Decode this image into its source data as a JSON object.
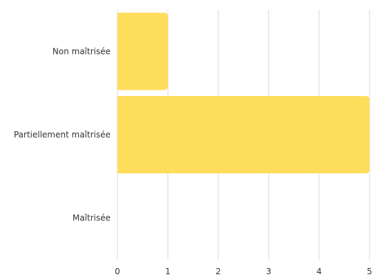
{
  "chart_data": {
    "type": "bar",
    "orientation": "horizontal",
    "categories": [
      "Non maîtrisée",
      "Partiellement maîtrisée",
      "Maîtrisée"
    ],
    "values": [
      1,
      5,
      0
    ],
    "xlim": [
      0,
      5
    ],
    "ticks": [
      "0",
      "1",
      "2",
      "3",
      "4",
      "5"
    ],
    "grid": true,
    "bar_color": "#FFDD5C"
  }
}
